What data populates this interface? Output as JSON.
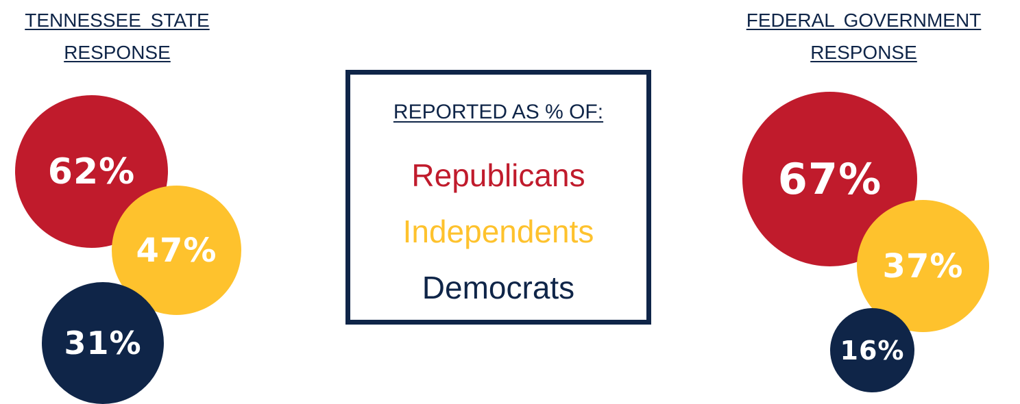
{
  "colors": {
    "republicans": "#c01b2c",
    "independents": "#fec22d",
    "democrats": "#0f2548"
  },
  "legend": {
    "heading": "REPORTED AS % OF:",
    "items": [
      {
        "label": "Republicans",
        "color": "#c01b2c"
      },
      {
        "label": "Independents",
        "color": "#fec22d"
      },
      {
        "label": "Democrats",
        "color": "#0f2548"
      }
    ]
  },
  "chart_data": [
    {
      "type": "bubble",
      "title": [
        "TENNESSEE STATE",
        "RESPONSE"
      ],
      "categories": [
        "Republicans",
        "Independents",
        "Democrats"
      ],
      "values": [
        62,
        47,
        31
      ],
      "labels": [
        "62%",
        "47%",
        "31%"
      ]
    },
    {
      "type": "bubble",
      "title": [
        "FEDERAL GOVERNMENT",
        "RESPONSE"
      ],
      "categories": [
        "Republicans",
        "Independents",
        "Democrats"
      ],
      "values": [
        67,
        37,
        16
      ],
      "labels": [
        "67%",
        "37%",
        "16%"
      ]
    }
  ]
}
